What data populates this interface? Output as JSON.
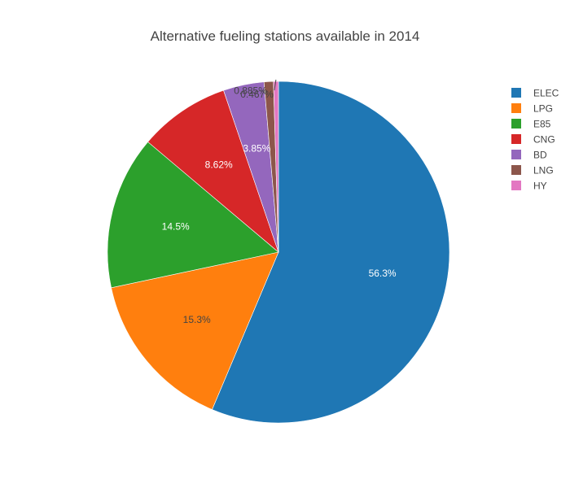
{
  "chart_data": {
    "type": "pie",
    "title": "Alternative fueling stations available in 2014",
    "direction": "clockwise",
    "start_angle_deg": 0,
    "labels": [
      "ELEC",
      "LPG",
      "E85",
      "CNG",
      "BD",
      "LNG",
      "HY"
    ],
    "values": [
      56.3,
      15.3,
      14.5,
      8.62,
      3.85,
      0.885,
      0.467
    ],
    "value_labels": [
      "56.3%",
      "15.3%",
      "14.5%",
      "8.62%",
      "3.85%",
      "0.885%",
      "0.467%"
    ],
    "colors": [
      "#1f77b4",
      "#ff7f0e",
      "#2ca02c",
      "#d62728",
      "#9467bd",
      "#8c564b",
      "#e377c2"
    ],
    "legend_position": "top-right",
    "textinfo": "percent"
  }
}
